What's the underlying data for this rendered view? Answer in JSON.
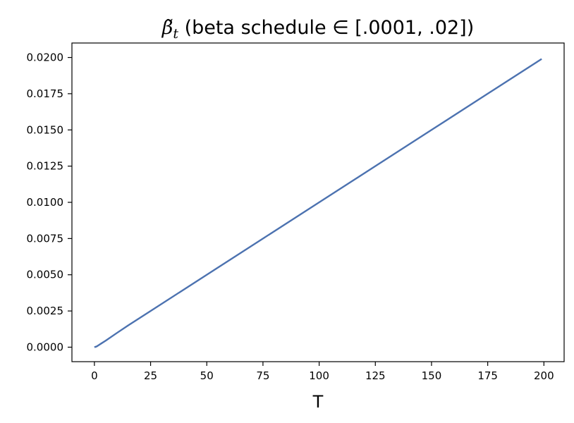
{
  "chart_data": {
    "type": "line",
    "title": {
      "symbol": "β̃",
      "subscript": "t",
      "text": " (beta schedule ∈ [.0001, .02])"
    },
    "xlabel": "T",
    "ylabel": "",
    "xlim": [
      -10,
      209
    ],
    "ylim": [
      -0.001,
      0.021
    ],
    "xticks": [
      0,
      25,
      50,
      75,
      100,
      125,
      150,
      175,
      200
    ],
    "yticks": [
      0.0,
      0.0025,
      0.005,
      0.0075,
      0.01,
      0.0125,
      0.015,
      0.0175,
      0.02
    ],
    "xtick_labels": [
      "0",
      "25",
      "50",
      "75",
      "100",
      "125",
      "150",
      "175",
      "200"
    ],
    "ytick_labels": [
      "0.0000",
      "0.0025",
      "0.0050",
      "0.0075",
      "0.0100",
      "0.0125",
      "0.0150",
      "0.0175",
      "0.0200"
    ],
    "grid": false,
    "line_color": "#4c72b0",
    "series": [
      {
        "x": [
          0,
          1,
          2,
          3,
          5,
          10,
          15,
          20,
          25,
          50,
          75,
          100,
          125,
          150,
          175,
          199
        ],
        "values": [
          0.0,
          5e-05,
          0.00015,
          0.00025,
          0.00045,
          0.00098,
          0.0015,
          0.002,
          0.0025,
          0.005,
          0.0075,
          0.01,
          0.0125,
          0.015,
          0.0175,
          0.0199
        ]
      }
    ]
  }
}
